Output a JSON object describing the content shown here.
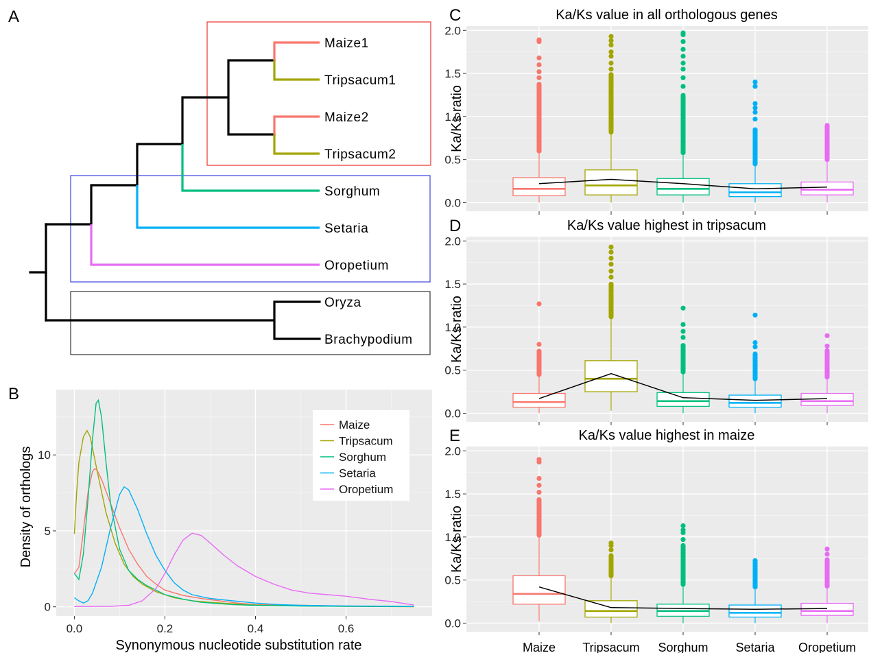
{
  "panels": {
    "a": "A",
    "b": "B",
    "c": "C",
    "d": "D",
    "e": "E"
  },
  "colors": {
    "maize": "#F8766D",
    "tripsacum": "#A3A500",
    "sorghum": "#00BF7D",
    "setaria": "#00B0F6",
    "oropetium": "#E76BF3",
    "tree_black": "#000000",
    "box_red": "#E8332A",
    "box_blue": "#3A44E0",
    "box_black": "#333333",
    "plot_bg": "#EBEBEB",
    "grid": "#FFFFFF"
  },
  "tree": {
    "leaves": [
      "Maize1",
      "Tripsacum1",
      "Maize2",
      "Tripsacum2",
      "Sorghum",
      "Setaria",
      "Oropetium",
      "Oryza",
      "Brachypodium"
    ]
  },
  "chart_data": [
    {
      "id": "B",
      "type": "line",
      "title": "",
      "xlabel": "Synonymous nucleotide substitution rate",
      "ylabel": "Density of orthologs",
      "xlim": [
        -0.04,
        0.79
      ],
      "ylim": [
        -0.6,
        14.3
      ],
      "xticks": [
        0.0,
        0.2,
        0.4,
        0.6
      ],
      "xtick_labels": [
        "0.0",
        "0.2",
        "0.4",
        "0.6"
      ],
      "yticks": [
        0,
        5,
        10
      ],
      "ytick_labels": [
        "0",
        "5",
        "10"
      ],
      "legend_position": "top-right",
      "series": [
        {
          "name": "Maize",
          "color": "#F8766D",
          "points": [
            [
              0.0,
              2.2
            ],
            [
              0.01,
              2.6
            ],
            [
              0.02,
              5.0
            ],
            [
              0.03,
              7.5
            ],
            [
              0.04,
              8.9
            ],
            [
              0.045,
              9.1
            ],
            [
              0.05,
              9.0
            ],
            [
              0.06,
              8.4
            ],
            [
              0.08,
              6.8
            ],
            [
              0.1,
              5.2
            ],
            [
              0.12,
              3.8
            ],
            [
              0.14,
              2.8
            ],
            [
              0.16,
              2.0
            ],
            [
              0.18,
              1.5
            ],
            [
              0.2,
              1.1
            ],
            [
              0.24,
              0.75
            ],
            [
              0.28,
              0.55
            ],
            [
              0.32,
              0.4
            ],
            [
              0.36,
              0.25
            ],
            [
              0.4,
              0.15
            ],
            [
              0.5,
              0.1
            ],
            [
              0.6,
              0.05
            ],
            [
              0.75,
              0.02
            ]
          ]
        },
        {
          "name": "Tripsacum",
          "color": "#A3A500",
          "points": [
            [
              0.0,
              4.8
            ],
            [
              0.005,
              7.5
            ],
            [
              0.01,
              9.5
            ],
            [
              0.02,
              11.2
            ],
            [
              0.028,
              11.6
            ],
            [
              0.035,
              11.2
            ],
            [
              0.05,
              9.0
            ],
            [
              0.07,
              6.2
            ],
            [
              0.09,
              4.2
            ],
            [
              0.11,
              2.8
            ],
            [
              0.13,
              2.0
            ],
            [
              0.15,
              1.5
            ],
            [
              0.18,
              1.0
            ],
            [
              0.22,
              0.6
            ],
            [
              0.26,
              0.4
            ],
            [
              0.3,
              0.3
            ],
            [
              0.35,
              0.2
            ],
            [
              0.4,
              0.12
            ],
            [
              0.5,
              0.06
            ],
            [
              0.6,
              0.03
            ],
            [
              0.75,
              0.01
            ]
          ]
        },
        {
          "name": "Sorghum",
          "color": "#00BF7D",
          "points": [
            [
              0.0,
              2.2
            ],
            [
              0.01,
              1.8
            ],
            [
              0.02,
              3.5
            ],
            [
              0.03,
              7.0
            ],
            [
              0.04,
              11.0
            ],
            [
              0.048,
              13.4
            ],
            [
              0.053,
              13.6
            ],
            [
              0.06,
              12.5
            ],
            [
              0.07,
              9.5
            ],
            [
              0.08,
              6.8
            ],
            [
              0.1,
              3.8
            ],
            [
              0.12,
              2.4
            ],
            [
              0.14,
              1.8
            ],
            [
              0.16,
              1.4
            ],
            [
              0.18,
              1.1
            ],
            [
              0.2,
              0.8
            ],
            [
              0.24,
              0.5
            ],
            [
              0.28,
              0.3
            ],
            [
              0.35,
              0.15
            ],
            [
              0.4,
              0.1
            ],
            [
              0.5,
              0.05
            ],
            [
              0.75,
              0.02
            ]
          ]
        },
        {
          "name": "Setaria",
          "color": "#00B0F6",
          "points": [
            [
              0.0,
              0.6
            ],
            [
              0.01,
              0.4
            ],
            [
              0.02,
              0.25
            ],
            [
              0.03,
              0.4
            ],
            [
              0.04,
              0.9
            ],
            [
              0.06,
              2.6
            ],
            [
              0.08,
              5.2
            ],
            [
              0.1,
              7.4
            ],
            [
              0.11,
              7.9
            ],
            [
              0.12,
              7.7
            ],
            [
              0.14,
              6.4
            ],
            [
              0.16,
              4.8
            ],
            [
              0.18,
              3.4
            ],
            [
              0.2,
              2.4
            ],
            [
              0.22,
              1.6
            ],
            [
              0.24,
              1.1
            ],
            [
              0.26,
              0.8
            ],
            [
              0.3,
              0.55
            ],
            [
              0.35,
              0.4
            ],
            [
              0.4,
              0.25
            ],
            [
              0.45,
              0.15
            ],
            [
              0.5,
              0.1
            ],
            [
              0.6,
              0.06
            ],
            [
              0.75,
              0.03
            ]
          ]
        },
        {
          "name": "Oropetium",
          "color": "#E76BF3",
          "points": [
            [
              0.0,
              0.02
            ],
            [
              0.08,
              0.03
            ],
            [
              0.12,
              0.1
            ],
            [
              0.15,
              0.4
            ],
            [
              0.18,
              1.2
            ],
            [
              0.2,
              2.2
            ],
            [
              0.22,
              3.4
            ],
            [
              0.24,
              4.4
            ],
            [
              0.26,
              4.85
            ],
            [
              0.28,
              4.7
            ],
            [
              0.3,
              4.2
            ],
            [
              0.33,
              3.4
            ],
            [
              0.36,
              2.7
            ],
            [
              0.4,
              2.0
            ],
            [
              0.44,
              1.5
            ],
            [
              0.48,
              1.1
            ],
            [
              0.52,
              0.9
            ],
            [
              0.56,
              0.8
            ],
            [
              0.6,
              0.7
            ],
            [
              0.65,
              0.5
            ],
            [
              0.7,
              0.35
            ],
            [
              0.75,
              0.12
            ]
          ]
        }
      ]
    },
    {
      "id": "C",
      "type": "box",
      "title": "Ka/Ks value in all orthologous genes",
      "xlabel": "",
      "ylabel": "Ka/Ks ratio",
      "ylim": [
        -0.1,
        2.05
      ],
      "yticks": [
        0.0,
        0.5,
        1.0,
        1.5,
        2.0
      ],
      "ytick_labels": [
        "0.0",
        "0.5",
        "1.0",
        "1.5",
        "2.0"
      ],
      "categories": [
        "Maize",
        "Tripsacum",
        "Sorghum",
        "Setaria",
        "Oropetium"
      ],
      "boxes": [
        {
          "q1": 0.08,
          "median": 0.16,
          "q3": 0.29,
          "whisker_low": 0.0,
          "whisker_high": 0.6,
          "outliers_range": [
            0.6,
            1.38
          ],
          "outliers_extra": [
            1.45,
            1.52,
            1.6,
            1.68,
            1.87,
            1.89
          ]
        },
        {
          "q1": 0.09,
          "median": 0.2,
          "q3": 0.38,
          "whisker_low": 0.0,
          "whisker_high": 0.82,
          "outliers_range": [
            0.82,
            1.5
          ],
          "outliers_extra": [
            1.55,
            1.62,
            1.7,
            1.75,
            1.83,
            1.88,
            1.93
          ]
        },
        {
          "q1": 0.09,
          "median": 0.16,
          "q3": 0.28,
          "whisker_low": 0.0,
          "whisker_high": 0.58,
          "outliers_range": [
            0.58,
            1.25
          ],
          "outliers_extra": [
            1.35,
            1.45,
            1.55,
            1.62,
            1.7,
            1.78,
            1.87,
            1.95,
            1.97
          ]
        },
        {
          "q1": 0.07,
          "median": 0.12,
          "q3": 0.22,
          "whisker_low": 0.0,
          "whisker_high": 0.45,
          "outliers_range": [
            0.45,
            0.85
          ],
          "outliers_extra": [
            0.97,
            1.05,
            1.1,
            1.15,
            1.35,
            1.4
          ]
        },
        {
          "q1": 0.09,
          "median": 0.15,
          "q3": 0.24,
          "whisker_low": 0.0,
          "whisker_high": 0.5,
          "outliers_range": [
            0.5,
            0.91
          ],
          "outliers_extra": []
        }
      ],
      "mean_line": [
        0.22,
        0.27,
        0.22,
        0.16,
        0.18
      ]
    },
    {
      "id": "D",
      "type": "box",
      "title": "Ka/Ks value highest in tripsacum",
      "xlabel": "",
      "ylabel": "Ka/Ks ratio",
      "ylim": [
        -0.1,
        2.05
      ],
      "yticks": [
        0.0,
        0.5,
        1.0,
        1.5,
        2.0
      ],
      "ytick_labels": [
        "0.0",
        "0.5",
        "1.0",
        "1.5",
        "2.0"
      ],
      "categories": [
        "Maize",
        "Tripsacum",
        "Sorghum",
        "Setaria",
        "Oropetium"
      ],
      "boxes": [
        {
          "q1": 0.07,
          "median": 0.13,
          "q3": 0.23,
          "whisker_low": 0.0,
          "whisker_high": 0.45,
          "outliers_range": [
            0.45,
            0.72
          ],
          "outliers_extra": [
            0.8,
            1.27
          ]
        },
        {
          "q1": 0.25,
          "median": 0.4,
          "q3": 0.61,
          "whisker_low": 0.03,
          "whisker_high": 1.12,
          "outliers_range": [
            1.12,
            1.5
          ],
          "outliers_extra": [
            1.58,
            1.65,
            1.73,
            1.8,
            1.87,
            1.93
          ]
        },
        {
          "q1": 0.08,
          "median": 0.14,
          "q3": 0.24,
          "whisker_low": 0.0,
          "whisker_high": 0.48,
          "outliers_range": [
            0.48,
            0.8
          ],
          "outliers_extra": [
            0.88,
            0.95,
            1.03,
            1.22
          ]
        },
        {
          "q1": 0.07,
          "median": 0.12,
          "q3": 0.21,
          "whisker_low": 0.0,
          "whisker_high": 0.4,
          "outliers_range": [
            0.4,
            0.7
          ],
          "outliers_extra": [
            0.77,
            0.82,
            1.14
          ]
        },
        {
          "q1": 0.09,
          "median": 0.14,
          "q3": 0.23,
          "whisker_low": 0.0,
          "whisker_high": 0.42,
          "outliers_range": [
            0.42,
            0.73
          ],
          "outliers_extra": [
            0.78,
            0.9
          ]
        }
      ],
      "mean_line": [
        0.17,
        0.46,
        0.18,
        0.15,
        0.17
      ]
    },
    {
      "id": "E",
      "type": "box",
      "title": "Ka/Ks value highest in maize",
      "xlabel": "",
      "ylabel": "Ka/Ks ratio",
      "ylim": [
        -0.1,
        2.05
      ],
      "yticks": [
        0.0,
        0.5,
        1.0,
        1.5,
        2.0
      ],
      "ytick_labels": [
        "0.0",
        "0.5",
        "1.0",
        "1.5",
        "2.0"
      ],
      "categories": [
        "Maize",
        "Tripsacum",
        "Sorghum",
        "Setaria",
        "Oropetium"
      ],
      "boxes": [
        {
          "q1": 0.22,
          "median": 0.34,
          "q3": 0.55,
          "whisker_low": 0.02,
          "whisker_high": 1.02,
          "outliers_range": [
            1.02,
            1.45
          ],
          "outliers_extra": [
            1.52,
            1.6,
            1.68,
            1.87,
            1.9
          ]
        },
        {
          "q1": 0.07,
          "median": 0.14,
          "q3": 0.26,
          "whisker_low": 0.0,
          "whisker_high": 0.55,
          "outliers_range": [
            0.55,
            0.8
          ],
          "outliers_extra": [
            0.85,
            0.9,
            0.93
          ]
        },
        {
          "q1": 0.08,
          "median": 0.14,
          "q3": 0.22,
          "whisker_low": 0.0,
          "whisker_high": 0.45,
          "outliers_range": [
            0.45,
            0.9
          ],
          "outliers_extra": [
            0.97,
            1.05,
            1.08,
            1.13
          ]
        },
        {
          "q1": 0.07,
          "median": 0.12,
          "q3": 0.21,
          "whisker_low": 0.0,
          "whisker_high": 0.42,
          "outliers_range": [
            0.42,
            0.74
          ],
          "outliers_extra": []
        },
        {
          "q1": 0.09,
          "median": 0.14,
          "q3": 0.23,
          "whisker_low": 0.0,
          "whisker_high": 0.43,
          "outliers_range": [
            0.43,
            0.75
          ],
          "outliers_extra": [
            0.8,
            0.86
          ]
        }
      ],
      "mean_line": [
        0.42,
        0.18,
        0.17,
        0.16,
        0.17
      ]
    }
  ]
}
